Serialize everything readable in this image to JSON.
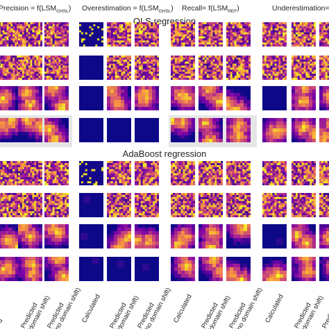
{
  "column_titles": [
    {
      "pre": "Precision = f(LSM",
      "sub": "GHSL",
      "post": ")"
    },
    {
      "pre": "Overestimation = f(LSM",
      "sub": "GHSL",
      "post": ")"
    },
    {
      "pre": "Recall= f(LSM",
      "sub": "REF",
      "post": ")"
    },
    {
      "pre": "Underestimation= f(L",
      "sub": "",
      "post": ""
    }
  ],
  "section_titles": [
    "OLS regression",
    "AdaBoost regression"
  ],
  "x_labels": [
    {
      "line1": "d",
      "line2": ""
    },
    {
      "line1": "Predicted",
      "line2": "(domain shift)"
    },
    {
      "line1": "Predicted",
      "line2": "(no domain shift)"
    },
    {
      "line1": "Calculated",
      "line2": ""
    },
    {
      "line1": "Predicted",
      "line2": "(domain shift)"
    },
    {
      "line1": "Predicted",
      "line2": "(no domain shift)"
    },
    {
      "line1": "Calculated",
      "line2": ""
    },
    {
      "line1": "Predicted",
      "line2": "(domain shift)"
    },
    {
      "line1": "Predicted",
      "line2": "(no domain shift)"
    },
    {
      "line1": "Calculated",
      "line2": ""
    },
    {
      "line1": "Predicted",
      "line2": "(domain shift)"
    },
    {
      "line1": "Predicted",
      "line2": "(no domain shift)"
    }
  ],
  "colors": {
    "low": "#1a1a9c",
    "mid": "#d62e8e",
    "high": "#fcd34a"
  }
}
